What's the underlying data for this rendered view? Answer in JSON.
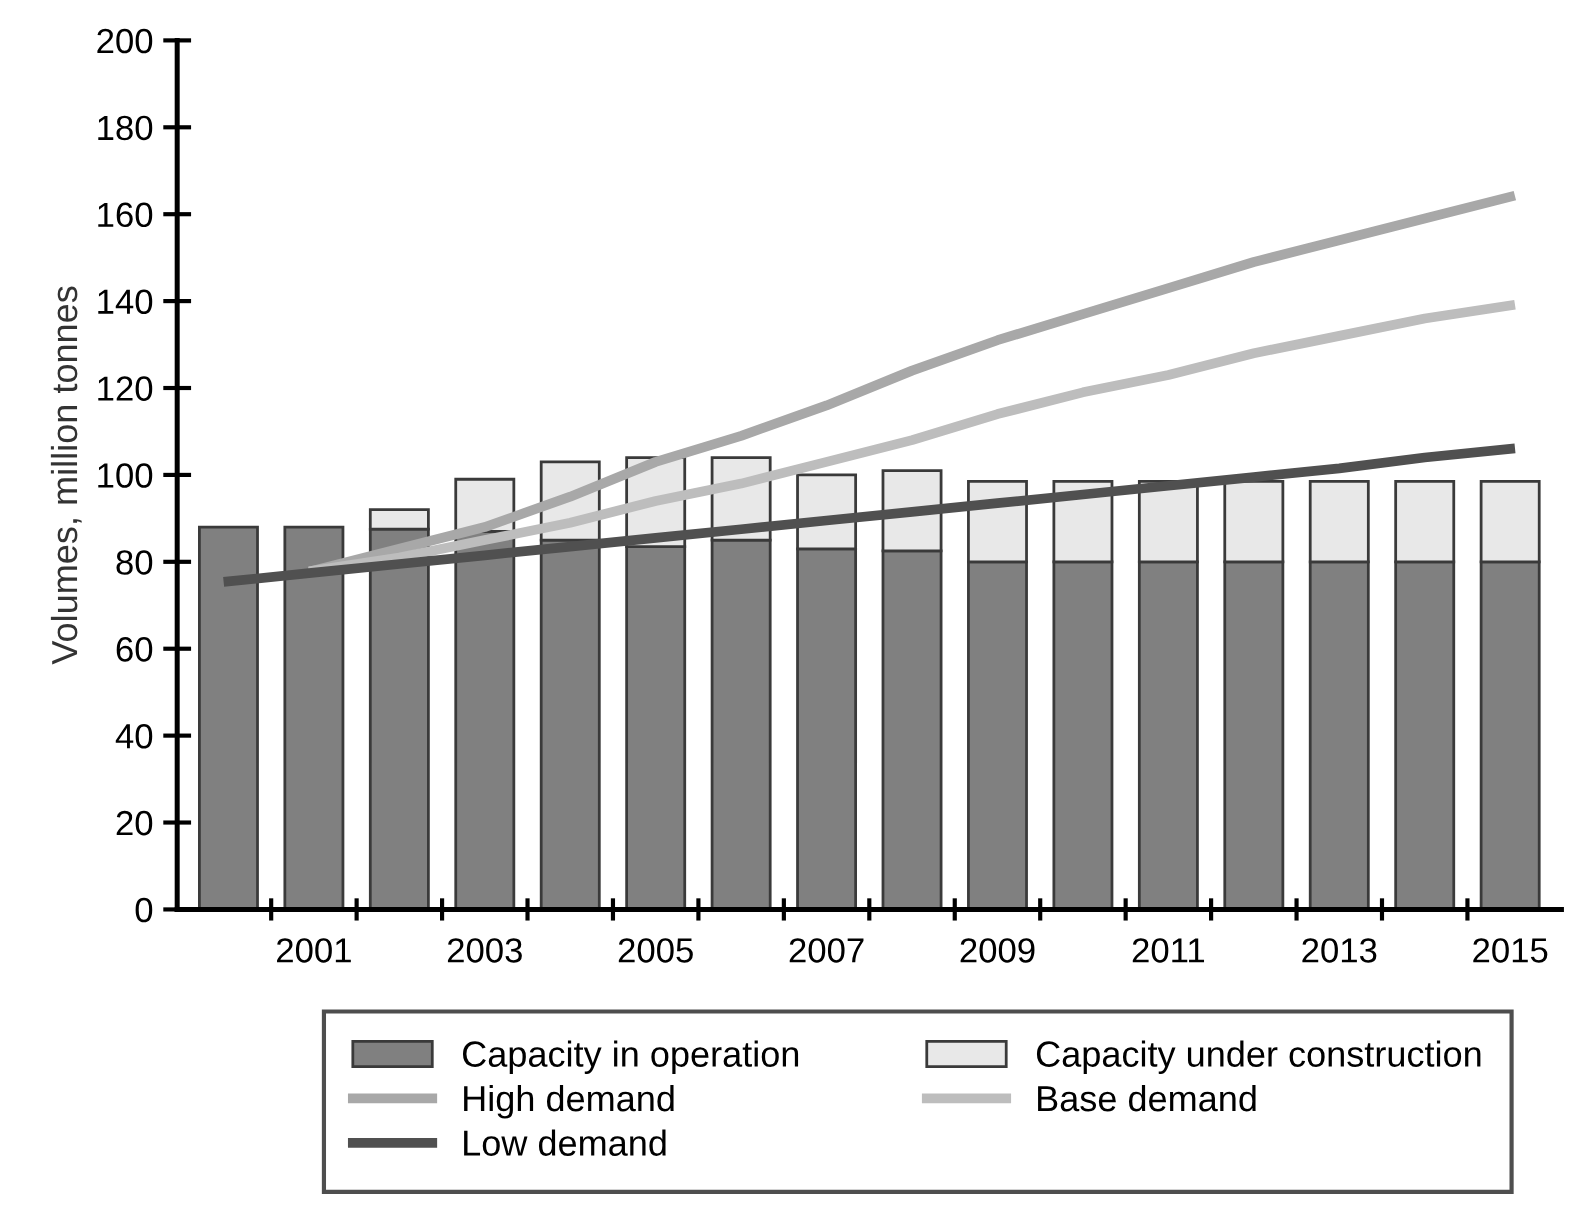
{
  "chart_data": {
    "type": "bar",
    "stacked": true,
    "ylabel": "Volumes, million tonnes",
    "categories": [
      null,
      "2001",
      null,
      "2003",
      null,
      "2005",
      null,
      "2007",
      null,
      "2009",
      null,
      "2011",
      null,
      "2013",
      null,
      "2015"
    ],
    "series": [
      {
        "name": "Capacity in operation",
        "color": "#808080",
        "values": [
          88,
          88,
          87.5,
          87,
          85,
          83.5,
          85,
          83,
          82.5,
          80,
          80,
          80,
          80,
          80,
          80,
          80
        ]
      },
      {
        "name": "Capacity under construction",
        "color": "#e8e8e8",
        "values": [
          0,
          0,
          4.5,
          12,
          18,
          20.5,
          19,
          17,
          18.5,
          18.5,
          18.5,
          18.5,
          18.5,
          18.5,
          18.5,
          18.5
        ]
      },
      {
        "name": "High demand",
        "type": "line",
        "color": "#a8a8a8",
        "values": [
          null,
          78,
          83,
          88,
          95,
          103,
          109,
          116,
          124,
          131,
          137,
          143,
          149,
          154,
          159,
          164
        ]
      },
      {
        "name": "Base demand",
        "type": "line",
        "color": "#bdbdbd",
        "values": [
          null,
          78,
          81,
          85,
          89,
          94,
          98,
          103,
          108,
          114,
          119,
          123,
          128,
          132,
          136,
          139
        ]
      },
      {
        "name": "Low demand",
        "type": "line",
        "color": "#505050",
        "values": [
          75.5,
          77.5,
          79.5,
          81.5,
          83.5,
          85.5,
          87.5,
          89.5,
          91.5,
          93.5,
          95.5,
          97.5,
          99.5,
          101.5,
          104,
          106
        ]
      }
    ],
    "ylim": [
      0,
      200
    ],
    "yticks": [
      0,
      20,
      40,
      60,
      80,
      100,
      120,
      140,
      160,
      180,
      200
    ],
    "grid": false,
    "legend": "bottom",
    "marker": "none",
    "line_style": "solid"
  }
}
